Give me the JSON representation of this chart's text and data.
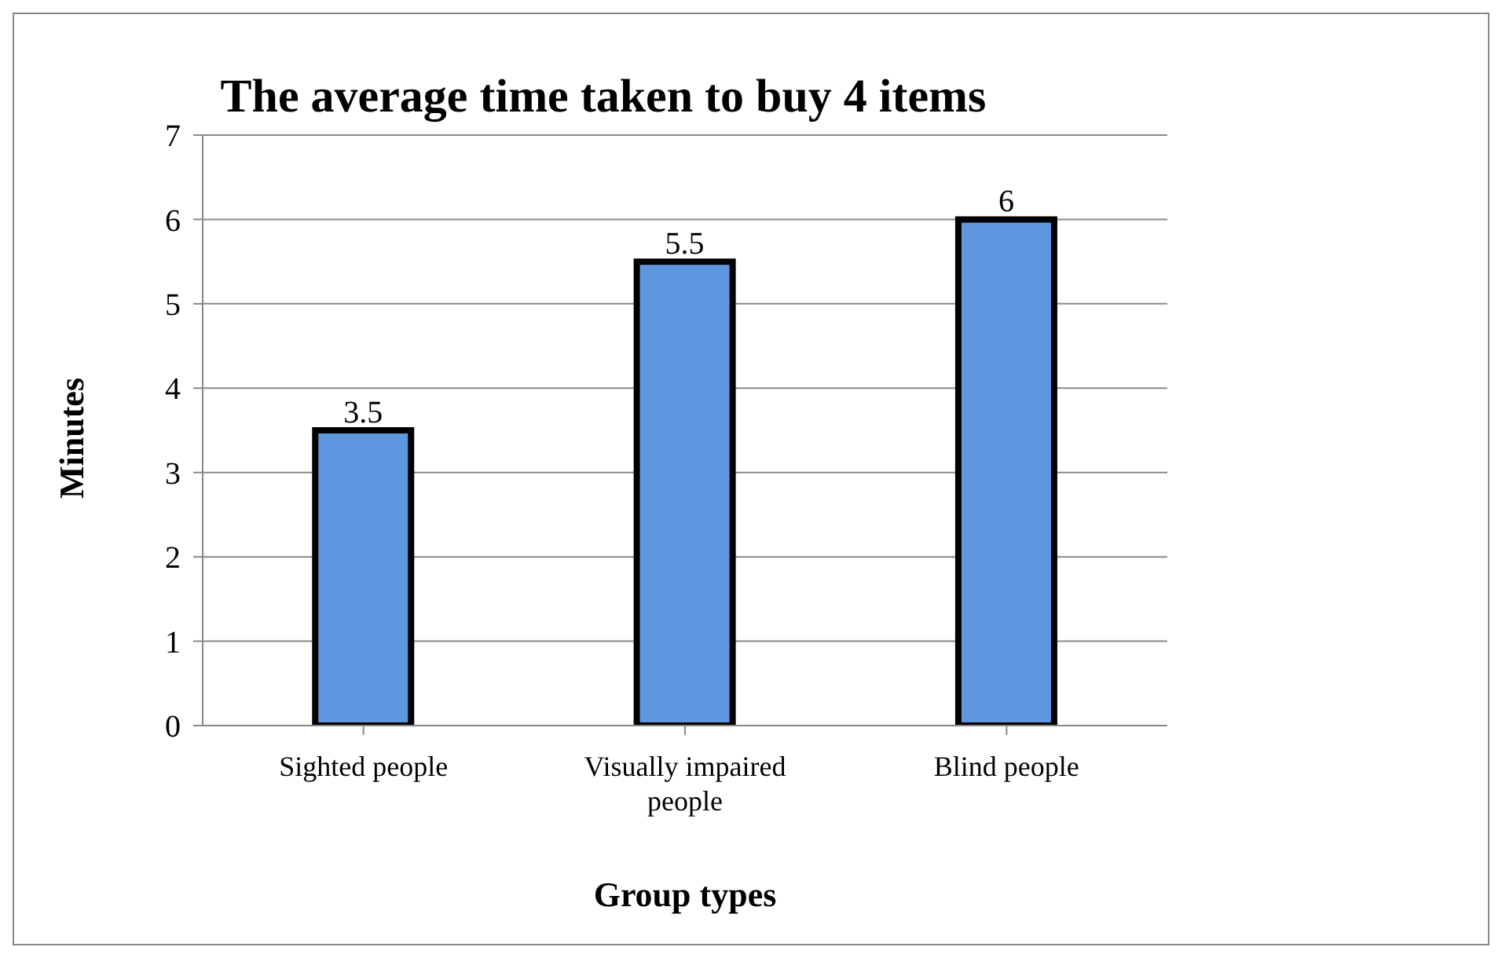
{
  "chart_data": {
    "type": "bar",
    "title": "The average time taken to buy 4 items",
    "xlabel": "Group types",
    "ylabel": "Minutes",
    "categories": [
      "Sighted people",
      "Visually impaired people",
      "Blind people"
    ],
    "values": [
      3.5,
      5.5,
      6
    ],
    "color": "#5e97e0",
    "ylim": [
      0,
      7
    ],
    "yticks": [
      0,
      1,
      2,
      3,
      4,
      5,
      6,
      7
    ],
    "grid": "y",
    "data_labels": true
  }
}
